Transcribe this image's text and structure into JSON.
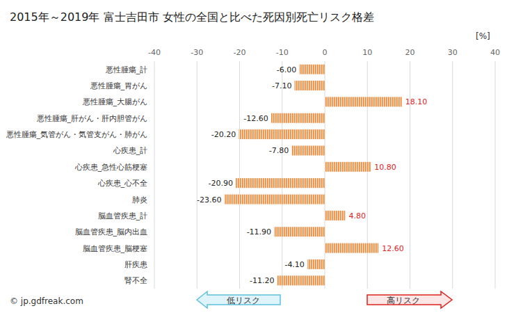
{
  "chart_data": {
    "type": "bar",
    "orientation": "horizontal",
    "title": "2015年～2019年 富士吉田市 女性の全国と比べた死因別死亡リスク格差",
    "xlabel": "[%]",
    "annotations": [
      "© jp.gdfreak.com",
      "低リスク",
      "高リスク"
    ],
    "categories": [
      "悪性腫瘍_計",
      "悪性腫瘍_胃がん",
      "悪性腫瘍_大腸がん",
      "悪性腫瘍_肝がん・肝内胆管がん",
      "悪性腫瘍_気管がん・気管支がん・肺がん",
      "心疾患_計",
      "心疾患_急性心筋梗塞",
      "心疾患_心不全",
      "肺炎",
      "脳血管疾患_計",
      "脳血管疾患_脳内出血",
      "脳血管疾患_脳梗塞",
      "肝疾患",
      "腎不全"
    ],
    "values": [
      -6.0,
      -7.1,
      18.1,
      -12.6,
      -20.2,
      -7.8,
      10.8,
      -20.9,
      -23.6,
      4.8,
      -11.9,
      12.6,
      -4.1,
      -11.2
    ],
    "value_labels": [
      "-6.00",
      "-7.10",
      "18.10",
      "-12.60",
      "-20.20",
      "-7.80",
      "10.80",
      "-20.90",
      "-23.60",
      "4.80",
      "-11.90",
      "12.60",
      "-4.10",
      "-11.20"
    ],
    "color": "#f0883a",
    "xlim": [
      -40,
      40
    ],
    "xticks": [
      -40,
      -30,
      -20,
      -10,
      0,
      10,
      20,
      30,
      40
    ],
    "grid": true,
    "data_labels": true
  }
}
